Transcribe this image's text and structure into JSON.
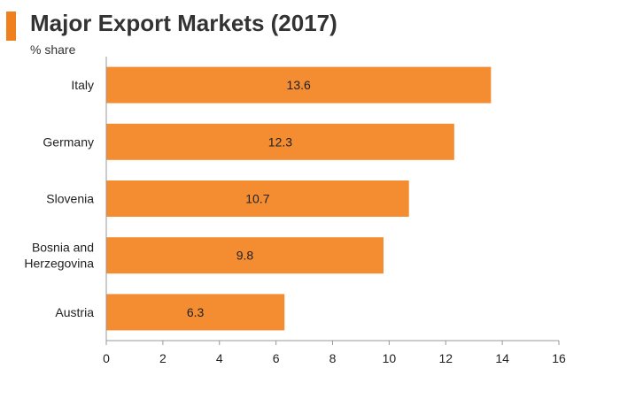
{
  "chart_data": {
    "type": "bar",
    "orientation": "horizontal",
    "title": "Major Export Markets (2017)",
    "subtitle": "% share",
    "categories": [
      [
        "Italy"
      ],
      [
        "Germany"
      ],
      [
        "Slovenia"
      ],
      [
        "Bosnia and",
        "Herzegovina"
      ],
      [
        "Austria"
      ]
    ],
    "values": [
      13.6,
      12.3,
      10.7,
      9.8,
      6.3
    ],
    "value_labels": [
      "13.6",
      "12.3",
      "10.7",
      "9.8",
      "6.3"
    ],
    "xlim": [
      0,
      16
    ],
    "xticks": [
      0,
      2,
      4,
      6,
      8,
      10,
      12,
      14,
      16
    ],
    "grid": false,
    "legend": "none"
  },
  "colors": {
    "bar": "#f48c31",
    "accent": "#f07f1e",
    "axis": "#999999"
  }
}
